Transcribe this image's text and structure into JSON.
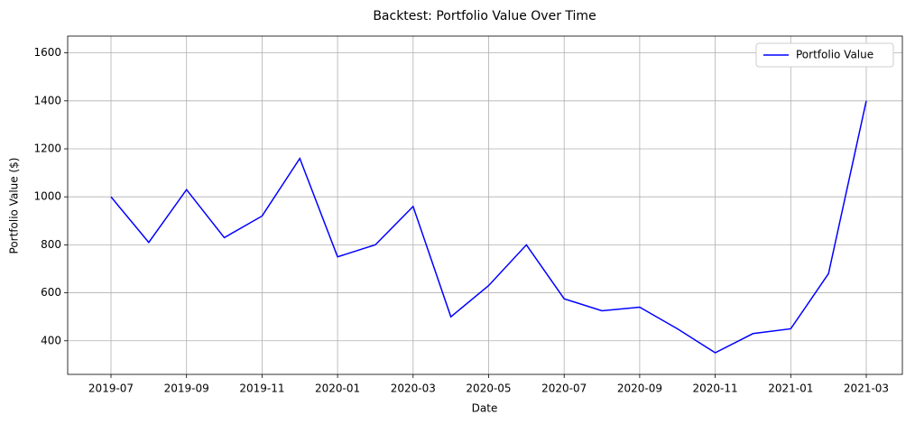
{
  "chart_data": {
    "type": "line",
    "title": "Backtest: Portfolio Value Over Time",
    "x_label": "Date",
    "y_label": "Portfolio Value ($)",
    "x": [
      "2019-07",
      "2019-08",
      "2019-09",
      "2019-10",
      "2019-11",
      "2019-12",
      "2020-01",
      "2020-02",
      "2020-03",
      "2020-04",
      "2020-05",
      "2020-06",
      "2020-07",
      "2020-08",
      "2020-09",
      "2020-10",
      "2020-11",
      "2020-12",
      "2021-01",
      "2021-02",
      "2021-03"
    ],
    "series": [
      {
        "name": "Portfolio Value",
        "color": "#0000ff",
        "values": [
          1000,
          810,
          1030,
          830,
          920,
          1160,
          750,
          800,
          960,
          500,
          630,
          800,
          575,
          525,
          540,
          450,
          350,
          430,
          450,
          680,
          1400
        ]
      }
    ],
    "xticks": [
      "2019-07",
      "2019-09",
      "2019-11",
      "2020-01",
      "2020-03",
      "2020-05",
      "2020-07",
      "2020-09",
      "2020-11",
      "2021-01",
      "2021-03"
    ],
    "ylim": [
      260,
      1670
    ],
    "yticks": [
      400,
      600,
      800,
      1000,
      1200,
      1400,
      1600
    ],
    "grid": true,
    "legend": "upper right"
  }
}
